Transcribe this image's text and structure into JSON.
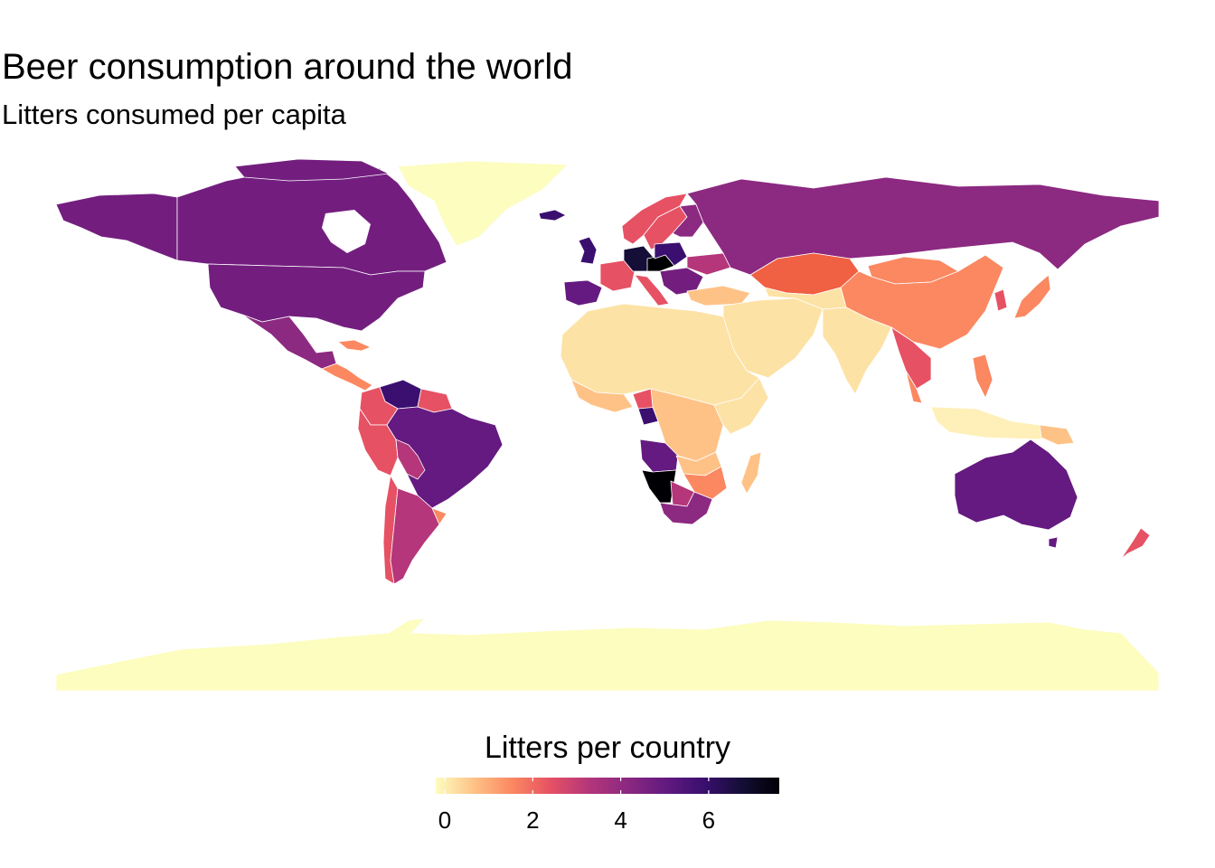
{
  "title": "Beer consumption around the world",
  "subtitle": "Litters consumed per capita",
  "legend": {
    "title": "Litters per country",
    "ticks": [
      "0",
      "2",
      "4",
      "6"
    ],
    "tick_values": [
      0,
      2,
      4,
      6
    ],
    "range": [
      0,
      7.4
    ],
    "palette": [
      "#fcfdbf",
      "#fec287",
      "#fb8861",
      "#e65164",
      "#b5367a",
      "#8c2981",
      "#641a80",
      "#3b0f70",
      "#150e37",
      "#000004"
    ]
  },
  "colors": {
    "no_data": "#fcfdbf",
    "border": "#ffffff"
  }
}
